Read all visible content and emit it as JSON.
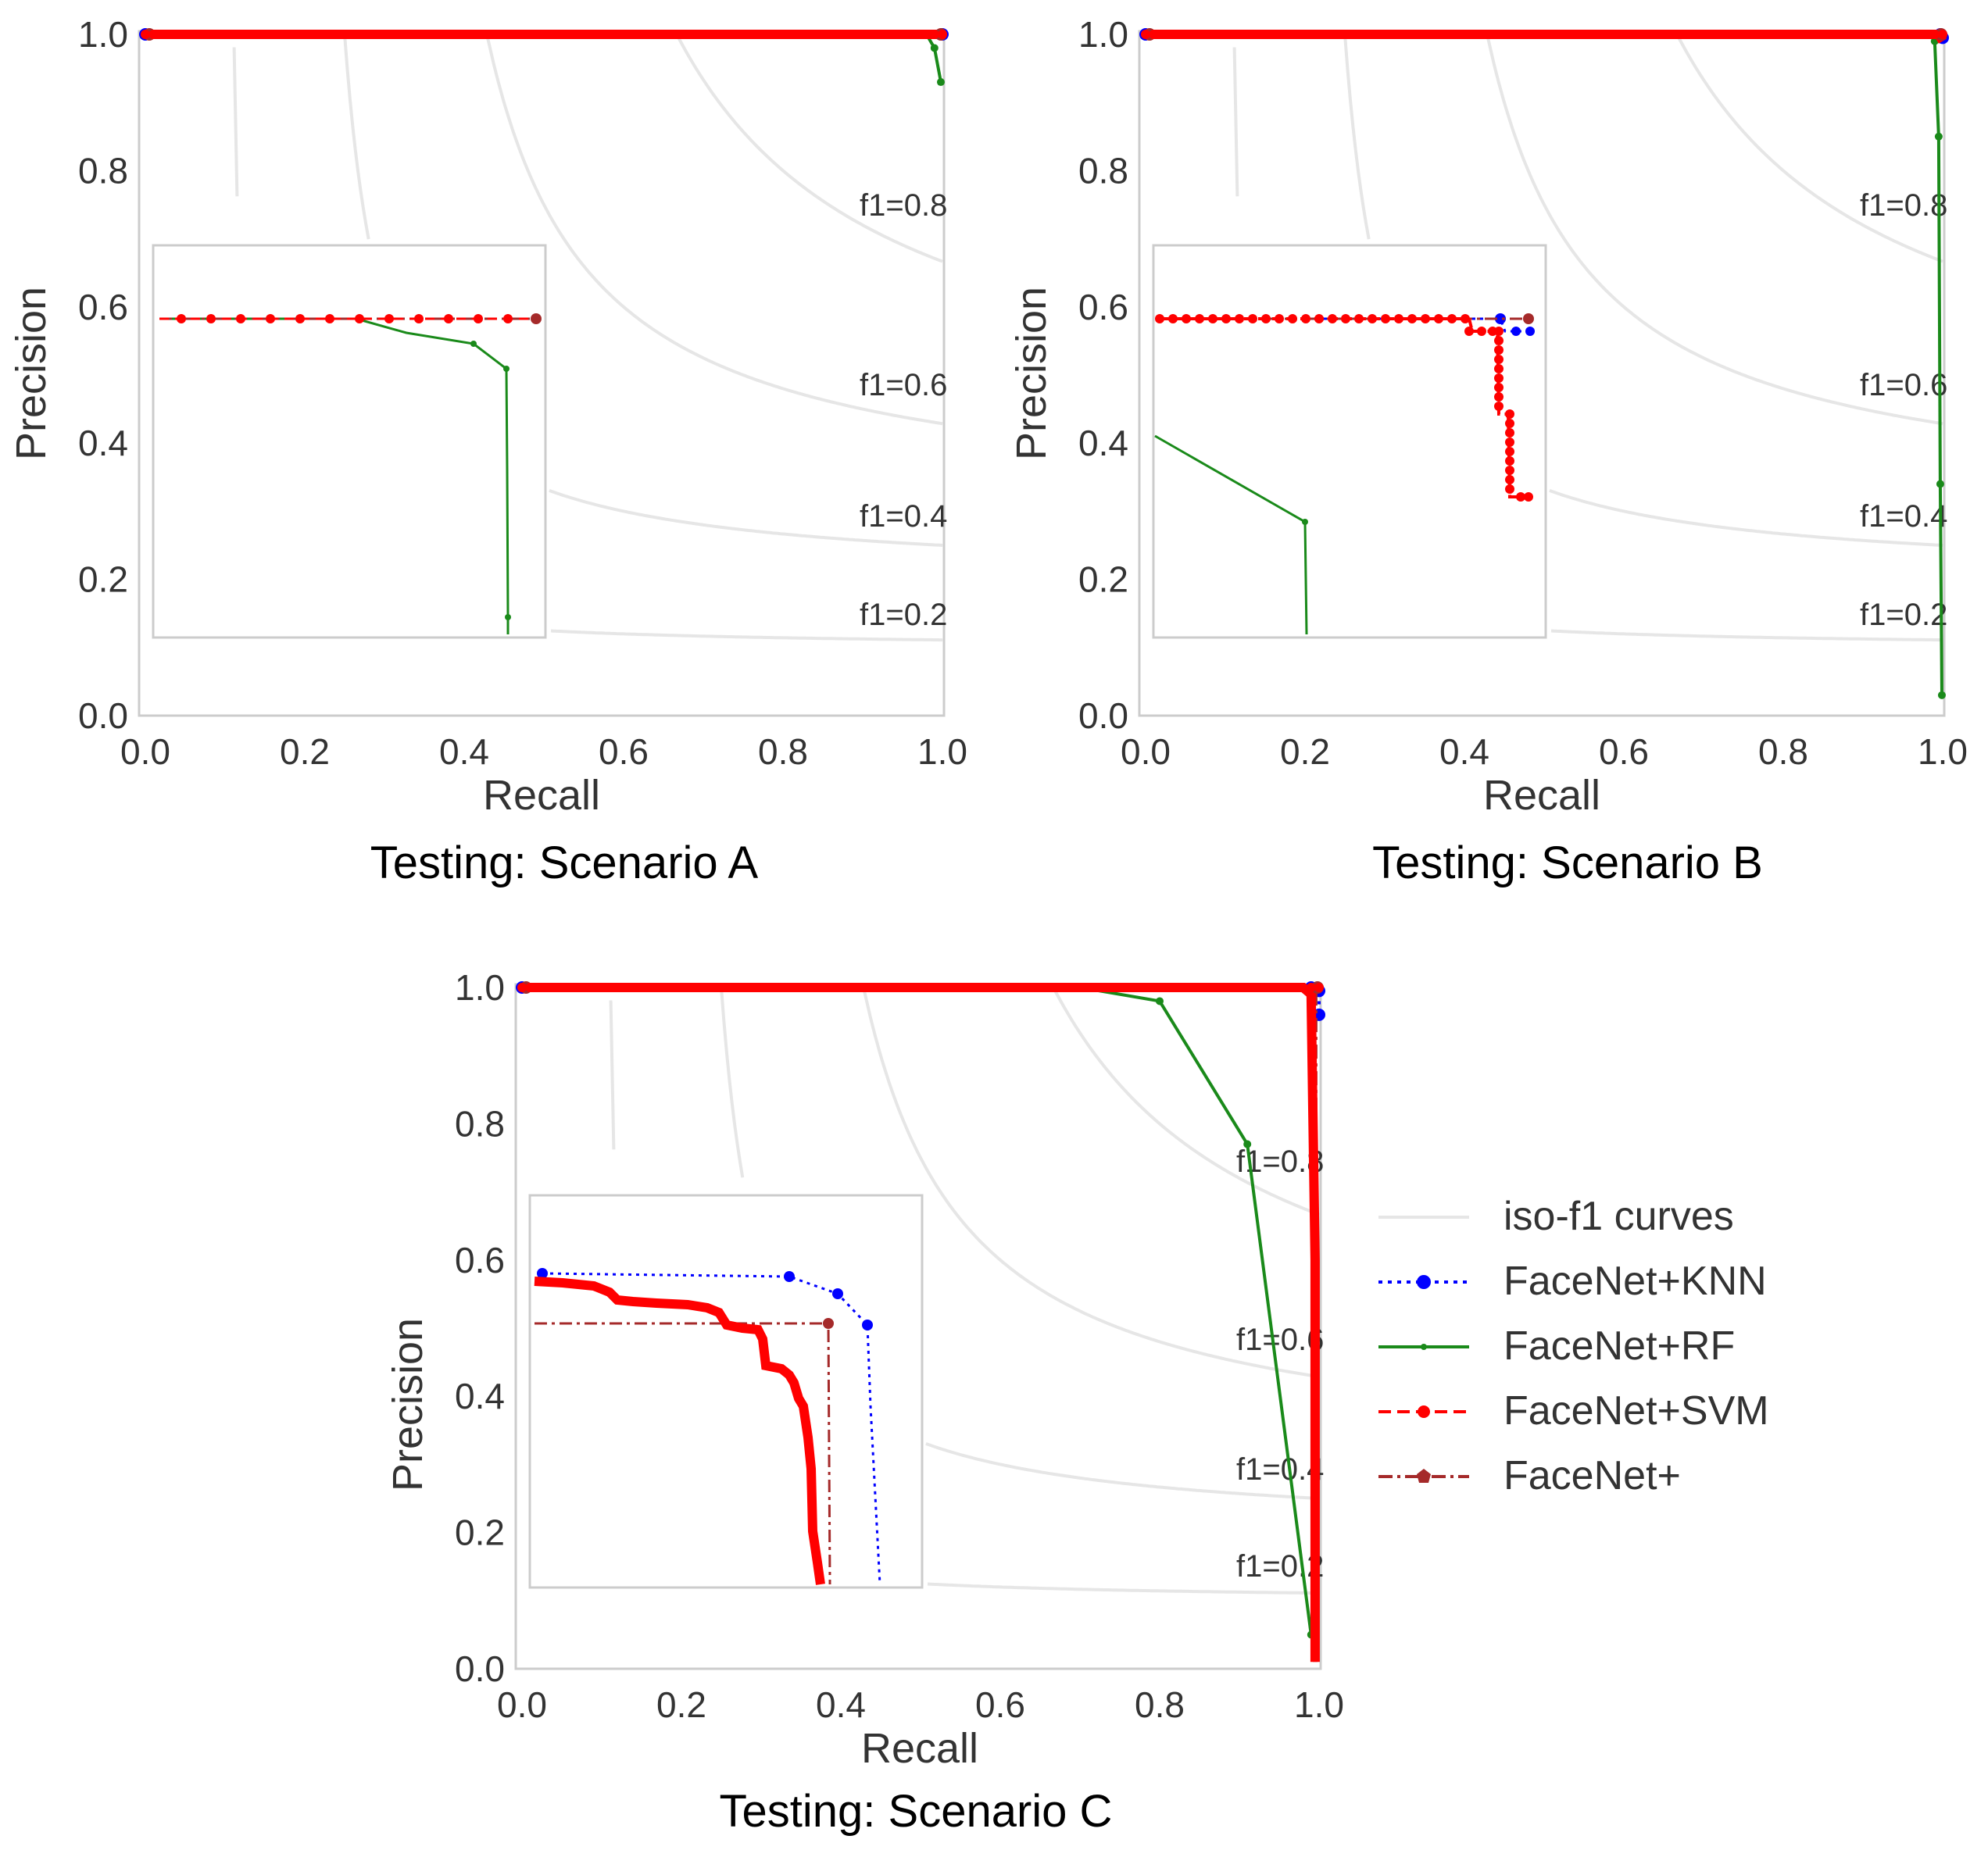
{
  "legend": {
    "items": [
      {
        "label": "iso-f1 curves",
        "color": "#e6e6e6",
        "style": "solid",
        "marker": "none"
      },
      {
        "label": "FaceNet+KNN",
        "color": "#0000ff",
        "style": "dotted",
        "marker": "circle"
      },
      {
        "label": "FaceNet+RF",
        "color": "#1a8a1a",
        "style": "solid",
        "marker": "small-dot"
      },
      {
        "label": "FaceNet+SVM",
        "color": "#ff0000",
        "style": "dashed",
        "marker": "circle"
      },
      {
        "label": "FaceNet+",
        "color": "#a52a2a",
        "style": "dashdot",
        "marker": "pentagon"
      }
    ]
  },
  "chart_data": [
    {
      "type": "line",
      "title": "Testing: Scenario A",
      "xlabel": "Recall",
      "ylabel": "Precision",
      "xlim": [
        0,
        1
      ],
      "ylim": [
        0,
        1
      ],
      "xticks": [
        "0.0",
        "0.2",
        "0.4",
        "0.6",
        "0.8",
        "1.0"
      ],
      "yticks": [
        "0.0",
        "0.2",
        "0.4",
        "0.6",
        "0.8",
        "1.0"
      ],
      "iso_f1": [
        {
          "f1": 0.2,
          "label": "f1=0.2"
        },
        {
          "f1": 0.4,
          "label": "f1=0.4"
        },
        {
          "f1": 0.6,
          "label": "f1=0.6"
        },
        {
          "f1": 0.8,
          "label": "f1=0.8"
        }
      ],
      "series": [
        {
          "name": "FaceNet+RF",
          "x": [
            0.0,
            0.98,
            0.99,
            0.998
          ],
          "y": [
            1.0,
            1.0,
            0.98,
            0.93
          ]
        },
        {
          "name": "FaceNet+KNN",
          "x": [
            0.0,
            1.0
          ],
          "y": [
            1.0,
            1.0
          ]
        },
        {
          "name": "FaceNet+SVM",
          "x": [
            0.0,
            1.0
          ],
          "y": [
            1.0,
            1.0
          ]
        },
        {
          "name": "FaceNet+",
          "x": [
            0.0,
            1.0
          ],
          "y": [
            1.0,
            1.0
          ]
        }
      ]
    },
    {
      "type": "line",
      "title": "Testing: Scenario B",
      "xlabel": "Recall",
      "ylabel": "Precision",
      "xlim": [
        0,
        1
      ],
      "ylim": [
        0,
        1
      ],
      "xticks": [
        "0.0",
        "0.2",
        "0.4",
        "0.6",
        "0.8",
        "1.0"
      ],
      "yticks": [
        "0.0",
        "0.2",
        "0.4",
        "0.6",
        "0.8",
        "1.0"
      ],
      "iso_f1": [
        {
          "f1": 0.2,
          "label": "f1=0.2"
        },
        {
          "f1": 0.4,
          "label": "f1=0.4"
        },
        {
          "f1": 0.6,
          "label": "f1=0.6"
        },
        {
          "f1": 0.8,
          "label": "f1=0.8"
        }
      ],
      "series": [
        {
          "name": "FaceNet+RF",
          "x": [
            0.0,
            0.985,
            0.99,
            0.995,
            0.997,
            0.999
          ],
          "y": [
            1.0,
            1.0,
            0.99,
            0.85,
            0.34,
            0.03
          ]
        },
        {
          "name": "FaceNet+KNN",
          "x": [
            0.0,
            0.997,
            1.0
          ],
          "y": [
            1.0,
            1.0,
            0.995
          ]
        },
        {
          "name": "FaceNet+SVM",
          "x": [
            0.0,
            0.995,
            1.0
          ],
          "y": [
            1.0,
            1.0,
            0.99
          ]
        },
        {
          "name": "FaceNet+",
          "x": [
            0.0,
            1.0
          ],
          "y": [
            1.0,
            1.0
          ]
        }
      ]
    },
    {
      "type": "line",
      "title": "Testing: Scenario C",
      "xlabel": "Recall",
      "ylabel": "Precision",
      "xlim": [
        0,
        1
      ],
      "ylim": [
        0,
        1
      ],
      "xticks": [
        "0.0",
        "0.2",
        "0.4",
        "0.6",
        "0.8",
        "1.0"
      ],
      "yticks": [
        "0.0",
        "0.2",
        "0.4",
        "0.6",
        "0.8",
        "1.0"
      ],
      "iso_f1": [
        {
          "f1": 0.2,
          "label": "f1=0.2"
        },
        {
          "f1": 0.4,
          "label": "f1=0.4"
        },
        {
          "f1": 0.6,
          "label": "f1=0.6"
        },
        {
          "f1": 0.8,
          "label": "f1=0.8"
        }
      ],
      "series": [
        {
          "name": "FaceNet+RF",
          "x": [
            0.0,
            0.7,
            0.8,
            0.91,
            0.99
          ],
          "y": [
            1.0,
            1.0,
            0.98,
            0.77,
            0.05
          ]
        },
        {
          "name": "FaceNet+KNN",
          "x": [
            0.0,
            0.99,
            1.0,
            1.0
          ],
          "y": [
            1.0,
            1.0,
            0.995,
            0.96
          ]
        },
        {
          "name": "FaceNet+SVM",
          "x": [
            0.0,
            0.98,
            0.99,
            0.995,
            0.995
          ],
          "y": [
            1.0,
            1.0,
            0.99,
            0.6,
            0.01
          ]
        },
        {
          "name": "FaceNet+",
          "x": [
            0.0,
            0.995,
            0.995
          ],
          "y": [
            1.0,
            1.0,
            0.01
          ]
        }
      ]
    }
  ]
}
